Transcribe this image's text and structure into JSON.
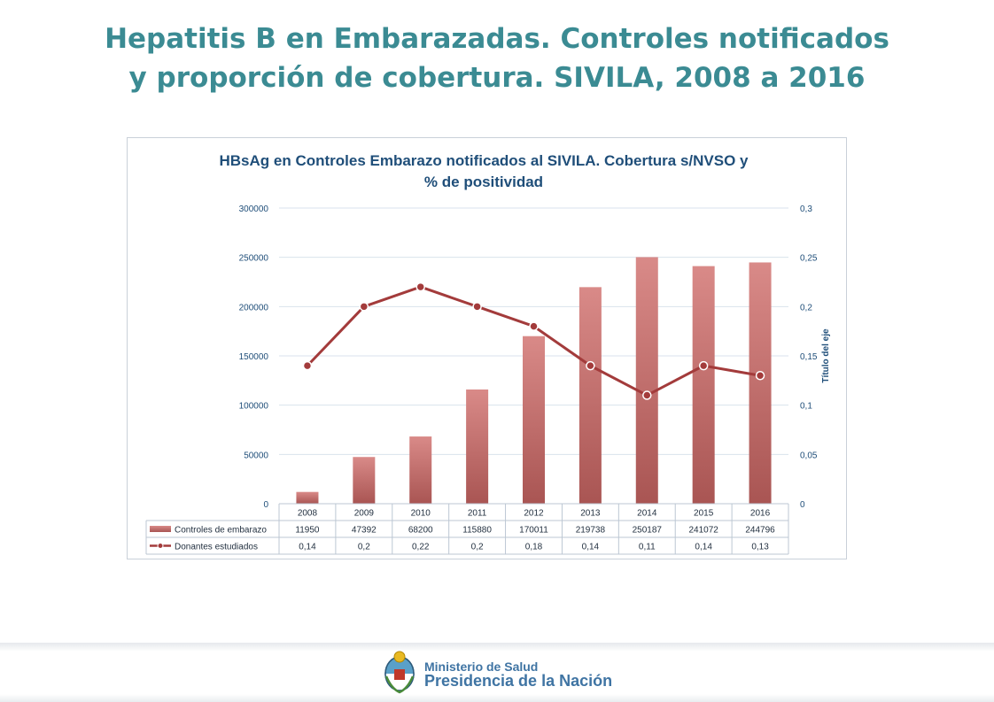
{
  "slide": {
    "title_line1": "Hepatitis B en Embarazadas. Controles notificados",
    "title_line2": "y proporción de cobertura. SIVILA, 2008 a 2016"
  },
  "footer": {
    "ministry_name": "Ministerio de Salud",
    "ministry_subtitle": "Presidencia de la Nación"
  },
  "chart_data": {
    "type": "bar",
    "title_line1": "HBsAg en Controles Embarazo notificados al SIVILA. Cobertura s/NVSO y",
    "title_line2": "% de positividad",
    "categories": [
      "2008",
      "2009",
      "2010",
      "2011",
      "2012",
      "2013",
      "2014",
      "2015",
      "2016"
    ],
    "left_axis": {
      "min": 0,
      "max": 300000,
      "ticks": [
        "0",
        "50000",
        "100000",
        "150000",
        "200000",
        "250000",
        "300000"
      ]
    },
    "right_axis": {
      "min": 0,
      "max": 0.3,
      "label": "Título del eje",
      "ticks": [
        "0",
        "0,05",
        "0,1",
        "0,15",
        "0,2",
        "0,25",
        "0,3"
      ]
    },
    "grid": true,
    "legend_placement": "data-table",
    "series": [
      {
        "name": "Controles de embarazo",
        "type": "bar",
        "axis": "left",
        "color": "#c0504d",
        "values": [
          11950,
          47392,
          68200,
          115880,
          170011,
          219738,
          250187,
          241072,
          244796
        ],
        "labels": [
          "11950",
          "47392",
          "68200",
          "115880",
          "170011",
          "219738",
          "250187",
          "241072",
          "244796"
        ]
      },
      {
        "name": "Donantes estudiados",
        "type": "line",
        "axis": "right",
        "color": "#a33b3b",
        "values": [
          0.14,
          0.2,
          0.22,
          0.2,
          0.18,
          0.14,
          0.11,
          0.14,
          0.13
        ],
        "labels": [
          "0,14",
          "0,2",
          "0,22",
          "0,2",
          "0,18",
          "0,14",
          "0,11",
          "0,14",
          "0,13"
        ]
      }
    ]
  }
}
